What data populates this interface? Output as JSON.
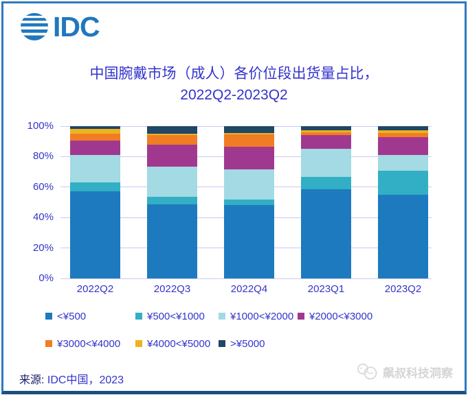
{
  "header": {
    "logo_text": "IDC",
    "logo_color": "#2077BE"
  },
  "title": {
    "line1": "中国腕戴市场（成人）各价位段出货量占比，",
    "line2": "2022Q2-2023Q2",
    "color": "#3333CC"
  },
  "chart_data": {
    "type": "bar",
    "stacked": true,
    "unit": "percent-share",
    "title": "中国腕戴市场（成人）各价位段出货量占比，2022Q2-2023Q2",
    "categories": [
      "2022Q2",
      "2022Q3",
      "2022Q4",
      "2023Q1",
      "2023Q2"
    ],
    "series": [
      {
        "name": "<¥500",
        "color": "#1E7ABE",
        "values": [
          57,
          48.5,
          48,
          58.5,
          55
        ]
      },
      {
        "name": "¥500<¥1000",
        "color": "#32AFC4",
        "values": [
          6,
          5,
          4,
          8,
          15.5
        ]
      },
      {
        "name": "¥1000<¥2000",
        "color": "#A3DAE3",
        "values": [
          18,
          20,
          19.5,
          18.5,
          10.5
        ]
      },
      {
        "name": "¥2000<¥3000",
        "color": "#A1388F",
        "values": [
          9.5,
          14.5,
          15,
          9,
          12
        ]
      },
      {
        "name": "¥3000<¥4000",
        "color": "#F07D24",
        "values": [
          4.5,
          6,
          8,
          2,
          2.5
        ]
      },
      {
        "name": "¥4000<¥5000",
        "color": "#EDB220",
        "values": [
          3,
          1,
          1,
          1.5,
          2
        ]
      },
      {
        "name": ">¥5000",
        "color": "#1F4767",
        "values": [
          2,
          5,
          4.5,
          2.5,
          2.5
        ]
      }
    ],
    "y_ticks": [
      "0%",
      "20%",
      "40%",
      "60%",
      "80%",
      "100%"
    ],
    "ylim": [
      0,
      100
    ],
    "grid": true,
    "legend_position": "bottom",
    "legend_rows": [
      [
        0,
        1,
        2,
        3
      ],
      [
        4,
        5,
        6
      ]
    ]
  },
  "colors": {
    "axis_text": "#3333CC",
    "gridline": "#C9C8F4",
    "frame_border": "#2E79BF",
    "watermark_gray": "#D5D5D5"
  },
  "footer": {
    "source_prefix": "来源: ",
    "source_text": "IDC中国，2023",
    "watermark": "飙叔科技洞察"
  }
}
